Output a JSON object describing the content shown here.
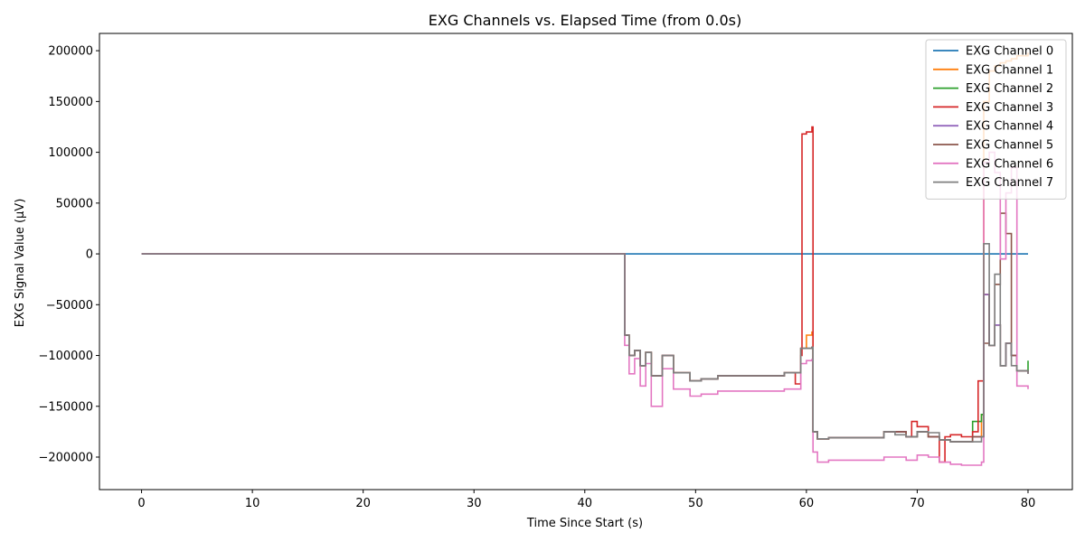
{
  "chart_data": {
    "type": "line",
    "title": "EXG Channels vs. Elapsed Time (from 0.0s)",
    "xlabel": "Time Since Start (s)",
    "ylabel": "EXG Signal Value (µV)",
    "xlim": [
      -3.8,
      84
    ],
    "ylim": [
      -232000,
      217000
    ],
    "xticks": [
      0,
      10,
      20,
      30,
      40,
      50,
      60,
      70,
      80
    ],
    "xtick_labels": [
      "0",
      "10",
      "20",
      "30",
      "40",
      "50",
      "60",
      "70",
      "80"
    ],
    "yticks": [
      -200000,
      -150000,
      -100000,
      -50000,
      0,
      50000,
      100000,
      150000,
      200000
    ],
    "ytick_labels": [
      "−200000",
      "−150000",
      "−100000",
      "−50000",
      "0",
      "50000",
      "100000",
      "150000",
      "200000"
    ],
    "grid": false,
    "legend_position": "top-right",
    "series": [
      {
        "name": "EXG Channel 0",
        "color": "#1f77b4",
        "x": [
          0,
          80
        ],
        "y": [
          0,
          0
        ]
      },
      {
        "name": "EXG Channel 1",
        "color": "#ff7f0e",
        "x": [
          0,
          43.5,
          43.6,
          44,
          44.5,
          45,
          45.5,
          46,
          47,
          48,
          49.5,
          50.5,
          52,
          55,
          58,
          59.5,
          60,
          60.5,
          60.6,
          61,
          62,
          65,
          67,
          69,
          70,
          71,
          72,
          73,
          74,
          75,
          75.8,
          76,
          76.5,
          77,
          77.5,
          78,
          78.5,
          79,
          80
        ],
        "y": [
          0,
          0,
          -80000,
          -100000,
          -95000,
          -110000,
          -97000,
          -120000,
          -100000,
          -117000,
          -125000,
          -123000,
          -120000,
          -120000,
          -117000,
          -93000,
          -80000,
          -77000,
          -175000,
          -182000,
          -181000,
          -181000,
          -175000,
          -180000,
          -175000,
          -180000,
          -183000,
          -185000,
          -185000,
          -180000,
          -158000,
          150000,
          180000,
          185000,
          188000,
          190000,
          192000,
          195000,
          198000
        ]
      },
      {
        "name": "EXG Channel 2",
        "color": "#2ca02c",
        "x": [
          0,
          43.5,
          43.6,
          44,
          44.5,
          45,
          45.5,
          46,
          47,
          48,
          49.5,
          50.5,
          52,
          55,
          58,
          59.5,
          60,
          60.5,
          60.6,
          61,
          62,
          65,
          67,
          69,
          70,
          71,
          72,
          73,
          74,
          75,
          75.8,
          76,
          76.5,
          77,
          77.5,
          78,
          78.5,
          79,
          80
        ],
        "y": [
          0,
          0,
          -80000,
          -100000,
          -95000,
          -110000,
          -97000,
          -120000,
          -100000,
          -117000,
          -125000,
          -123000,
          -120000,
          -120000,
          -117000,
          -93000,
          -93000,
          -92000,
          -175000,
          -182000,
          -181000,
          -181000,
          -175000,
          -180000,
          -175000,
          -180000,
          -183000,
          -185000,
          -185000,
          -165000,
          -158000,
          -40000,
          -90000,
          -70000,
          -110000,
          -88000,
          -100000,
          -115000,
          -105000
        ]
      },
      {
        "name": "EXG Channel 3",
        "color": "#d62728",
        "x": [
          0,
          43.5,
          43.6,
          44,
          44.5,
          45,
          45.5,
          46,
          47,
          48,
          49.5,
          50.5,
          52,
          55,
          58,
          59,
          59.5,
          59.6,
          60,
          60.5,
          60.6,
          61,
          62,
          65,
          67,
          69,
          69.5,
          70,
          71,
          72,
          72.5,
          73,
          74,
          75,
          75.5,
          76,
          76.5,
          77,
          77.5,
          78,
          78.5,
          79,
          80
        ],
        "y": [
          0,
          0,
          -80000,
          -100000,
          -95000,
          -110000,
          -97000,
          -120000,
          -100000,
          -117000,
          -125000,
          -123000,
          -120000,
          -120000,
          -117000,
          -128000,
          -100000,
          118000,
          120000,
          125000,
          -175000,
          -182000,
          -181000,
          -181000,
          -175000,
          -180000,
          -165000,
          -170000,
          -180000,
          -205000,
          -180000,
          -178000,
          -180000,
          -175000,
          -125000,
          -40000,
          -90000,
          -70000,
          -110000,
          -88000,
          -100000,
          -115000,
          -115000
        ]
      },
      {
        "name": "EXG Channel 4",
        "color": "#9467bd",
        "x": [
          0,
          43.5,
          43.6,
          44,
          44.5,
          45,
          45.5,
          46,
          47,
          48,
          49.5,
          50.5,
          52,
          55,
          58,
          59.5,
          60,
          60.5,
          60.6,
          61,
          62,
          65,
          67,
          69,
          70,
          71,
          72,
          73,
          74,
          75,
          75.8,
          76,
          76.5,
          77,
          77.5,
          78,
          78.5,
          79,
          80
        ],
        "y": [
          0,
          0,
          -80000,
          -100000,
          -95000,
          -110000,
          -97000,
          -120000,
          -100000,
          -117000,
          -125000,
          -123000,
          -120000,
          -120000,
          -117000,
          -93000,
          -93000,
          -92000,
          -175000,
          -182000,
          -181000,
          -181000,
          -175000,
          -180000,
          -175000,
          -180000,
          -183000,
          -185000,
          -185000,
          -180000,
          -180000,
          -40000,
          -90000,
          -70000,
          -110000,
          -88000,
          -100000,
          -115000,
          -118000
        ]
      },
      {
        "name": "EXG Channel 5",
        "color": "#8c564b",
        "x": [
          0,
          43.5,
          43.6,
          44,
          44.5,
          45,
          45.5,
          46,
          47,
          48,
          49.5,
          50.5,
          52,
          55,
          58,
          59.5,
          60,
          60.5,
          60.6,
          61,
          62,
          65,
          67,
          69,
          70,
          71,
          72,
          73,
          74,
          75,
          75.8,
          76,
          76.5,
          77,
          77.5,
          78,
          78.5,
          79,
          80
        ],
        "y": [
          0,
          0,
          -80000,
          -100000,
          -95000,
          -110000,
          -97000,
          -120000,
          -100000,
          -117000,
          -125000,
          -123000,
          -120000,
          -120000,
          -117000,
          -93000,
          -93000,
          -92000,
          -175000,
          -182000,
          -181000,
          -181000,
          -175000,
          -180000,
          -175000,
          -180000,
          -183000,
          -185000,
          -185000,
          -180000,
          -180000,
          -88000,
          -90000,
          -30000,
          40000,
          20000,
          -100000,
          -115000,
          -118000
        ]
      },
      {
        "name": "EXG Channel 6",
        "color": "#e377c2",
        "x": [
          0,
          43.5,
          43.6,
          44,
          44.5,
          45,
          45.5,
          46,
          47,
          48,
          49.5,
          50.5,
          52,
          55,
          58,
          59.5,
          60,
          60.5,
          60.6,
          61,
          62,
          65,
          67,
          68,
          69,
          70,
          71,
          72,
          73,
          74,
          75,
          75.8,
          76,
          76.5,
          77,
          77.5,
          78,
          78.5,
          79,
          80
        ],
        "y": [
          0,
          0,
          -90000,
          -118000,
          -103000,
          -130000,
          -108000,
          -150000,
          -113000,
          -133000,
          -140000,
          -138000,
          -135000,
          -135000,
          -133000,
          -108000,
          -105000,
          -104000,
          -195000,
          -205000,
          -203000,
          -203000,
          -200000,
          -200000,
          -203000,
          -198000,
          -200000,
          -205000,
          -207000,
          -208000,
          -208000,
          -205000,
          90000,
          100000,
          80000,
          -5000,
          60000,
          85000,
          -130000,
          -133000
        ]
      },
      {
        "name": "EXG Channel 7",
        "color": "#7f7f7f",
        "x": [
          0,
          43.5,
          43.6,
          44,
          44.5,
          45,
          45.5,
          46,
          47,
          48,
          49.5,
          50.5,
          52,
          55,
          58,
          59.5,
          60,
          60.5,
          60.6,
          61,
          62,
          65,
          67,
          68,
          69,
          70,
          71,
          72,
          73,
          74,
          75,
          75.8,
          76,
          76.5,
          77,
          77.5,
          78,
          78.5,
          79,
          80
        ],
        "y": [
          0,
          0,
          -80000,
          -100000,
          -95000,
          -110000,
          -97000,
          -120000,
          -100000,
          -117000,
          -125000,
          -123000,
          -120000,
          -120000,
          -117000,
          -93000,
          -93000,
          -92000,
          -175000,
          -182000,
          -181000,
          -181000,
          -175000,
          -178000,
          -180000,
          -175000,
          -176000,
          -183000,
          -185000,
          -185000,
          -185000,
          -180000,
          10000,
          -90000,
          -20000,
          -110000,
          -88000,
          -110000,
          -115000,
          -118000
        ]
      }
    ]
  }
}
